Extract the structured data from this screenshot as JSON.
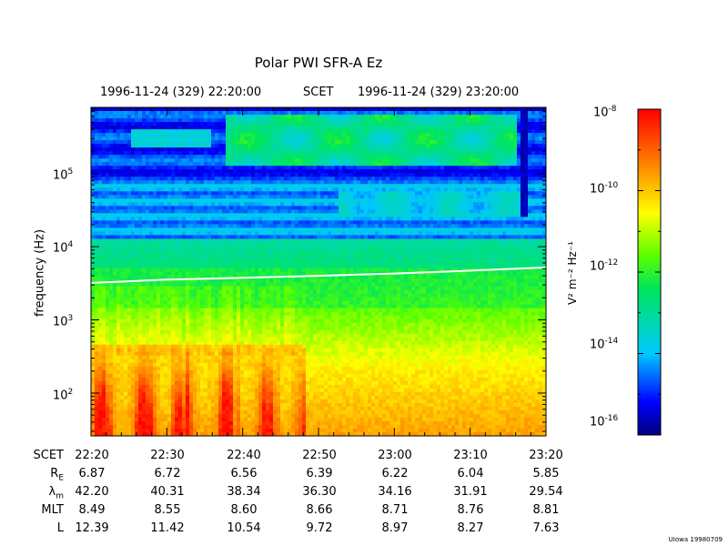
{
  "title": "Polar PWI SFR-A Ez",
  "top_axis": {
    "start": "1996-11-24 (329) 22:20:00",
    "system": "SCET",
    "end": "1996-11-24 (329) 23:20:00"
  },
  "credit": "UIowa 19980709",
  "chart_data": {
    "type": "heatmap",
    "title": "Polar PWI SFR-A Ez",
    "ylabel": "frequency (Hz)",
    "yscale": "log",
    "ylim": [
      26,
      800000
    ],
    "y_ticks": [
      {
        "value": 100,
        "base": "10",
        "exp": "2"
      },
      {
        "value": 1000,
        "base": "10",
        "exp": "3"
      },
      {
        "value": 10000,
        "base": "10",
        "exp": "4"
      },
      {
        "value": 100000,
        "base": "10",
        "exp": "5"
      }
    ],
    "x_ticks": [
      "22:20",
      "22:30",
      "22:40",
      "22:50",
      "23:00",
      "23:10",
      "23:20"
    ],
    "colorbar": {
      "label": "V² m⁻² Hz⁻¹",
      "scale": "log",
      "range": [
        1e-16,
        1e-08
      ],
      "ticks": [
        {
          "base": "10",
          "exp": "-8"
        },
        {
          "base": "10",
          "exp": "-10"
        },
        {
          "base": "10",
          "exp": "-12"
        },
        {
          "base": "10",
          "exp": "-14"
        },
        {
          "base": "10",
          "exp": "-16"
        }
      ]
    },
    "white_line": {
      "name": "electron cyclotron frequency",
      "x": [
        "22:20",
        "22:30",
        "22:40",
        "22:50",
        "23:00",
        "23:10",
        "23:20"
      ],
      "y": [
        3200,
        3550,
        3750,
        4000,
        4300,
        4700,
        5200
      ]
    }
  },
  "ephemeris": {
    "rows": [
      {
        "label": "SCET",
        "values": [
          "22:20",
          "22:30",
          "22:40",
          "22:50",
          "23:00",
          "23:10",
          "23:20"
        ]
      },
      {
        "label": "R",
        "sub": "E",
        "values": [
          "6.87",
          "6.72",
          "6.56",
          "6.39",
          "6.22",
          "6.04",
          "5.85"
        ]
      },
      {
        "label": "λ",
        "sub": "m",
        "values": [
          "42.20",
          "40.31",
          "38.34",
          "36.30",
          "34.16",
          "31.91",
          "29.54"
        ]
      },
      {
        "label": "MLT",
        "values": [
          "8.49",
          "8.55",
          "8.60",
          "8.66",
          "8.71",
          "8.76",
          "8.81"
        ]
      },
      {
        "label": "L",
        "values": [
          "12.39",
          "11.42",
          "10.54",
          "9.72",
          "8.97",
          "8.27",
          "7.63"
        ]
      }
    ]
  }
}
